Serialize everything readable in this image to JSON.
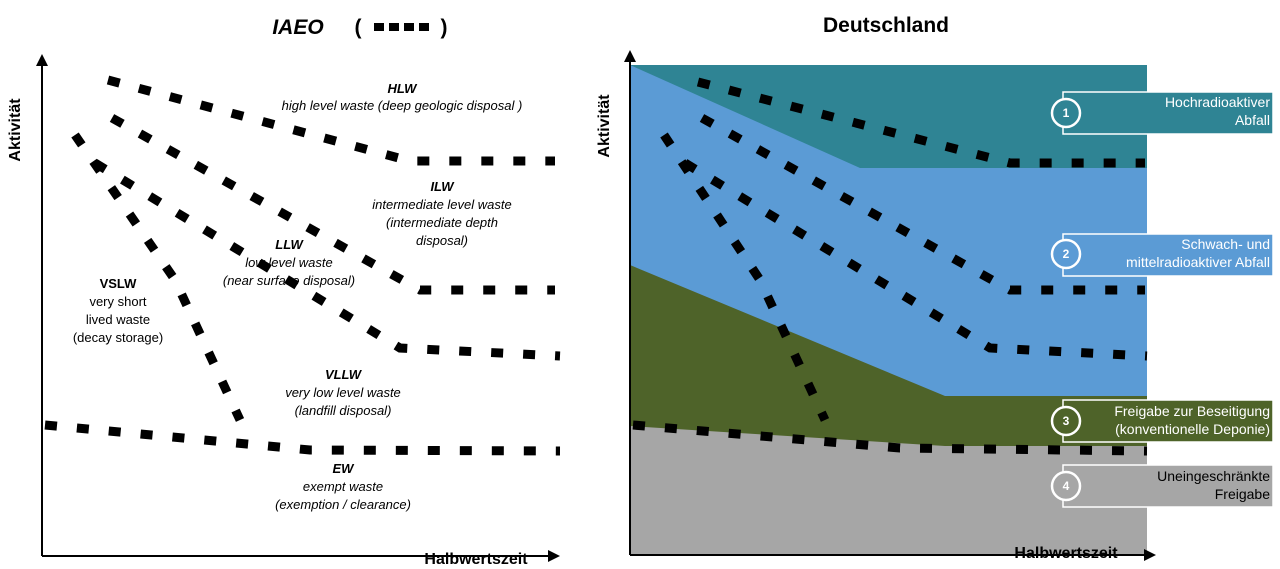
{
  "left_panel": {
    "title": "IAEO",
    "title_paren_open": "(",
    "title_paren_close": ")",
    "y_axis_label": "Aktivität",
    "x_axis_label": "Halbwertszeit",
    "categories": {
      "hlw": {
        "name": "HLW",
        "lines": [
          "high level waste (deep geologic disposal )"
        ]
      },
      "ilw": {
        "name": "ILW",
        "lines": [
          "intermediate level waste",
          "(intermediate depth",
          "disposal)"
        ]
      },
      "llw": {
        "name": "LLW",
        "lines": [
          "low level waste",
          "(near surface disposal)"
        ]
      },
      "vslw": {
        "name": "VSLW",
        "lines": [
          "very short",
          "lived waste",
          "(decay storage)"
        ]
      },
      "vllw": {
        "name": "VLLW",
        "lines": [
          "very low level waste",
          "(landfill disposal)"
        ]
      },
      "ew": {
        "name": "EW",
        "lines": [
          "exempt waste",
          "(exemption / clearance)"
        ]
      }
    }
  },
  "right_panel": {
    "title": "Deutschland",
    "y_axis_label": "Aktivität",
    "x_axis_label": "Halbwertszeit",
    "colors": {
      "hochradioaktiv": "#2f8494",
      "schwach_mittel": "#5b9bd5",
      "beseitigung": "#4e6329",
      "uneingeschraenkt": "#a6a6a6"
    },
    "legend": [
      {
        "number": "1",
        "lines": [
          "Hochradioaktiver",
          "Abfall"
        ]
      },
      {
        "number": "2",
        "lines": [
          "Schwach- und",
          "mittelradioaktiver Abfall"
        ]
      },
      {
        "number": "3",
        "lines": [
          "Freigabe zur Beseitigung",
          "(konventionelle Deponie)"
        ]
      },
      {
        "number": "4",
        "lines": [
          "Uneingeschränkte",
          "Freigabe"
        ]
      }
    ]
  }
}
